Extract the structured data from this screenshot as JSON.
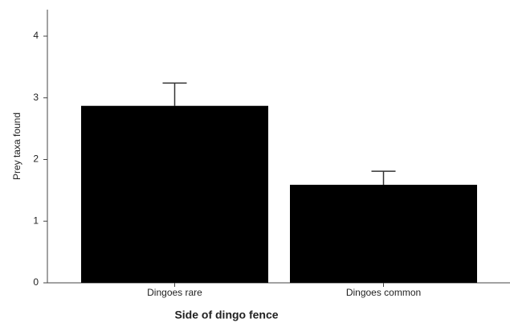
{
  "chart_data": {
    "type": "bar",
    "x_label": "Side of dingo fence",
    "y_label": "Prey taxa found",
    "categories": [
      "Dingoes rare",
      "Dingoes common"
    ],
    "values": [
      2.87,
      1.59
    ],
    "errors": [
      0.37,
      0.22
    ],
    "color": "#000000",
    "ylim": [
      0,
      4.43
    ],
    "yticks": [
      0,
      1,
      2,
      3,
      4
    ]
  }
}
